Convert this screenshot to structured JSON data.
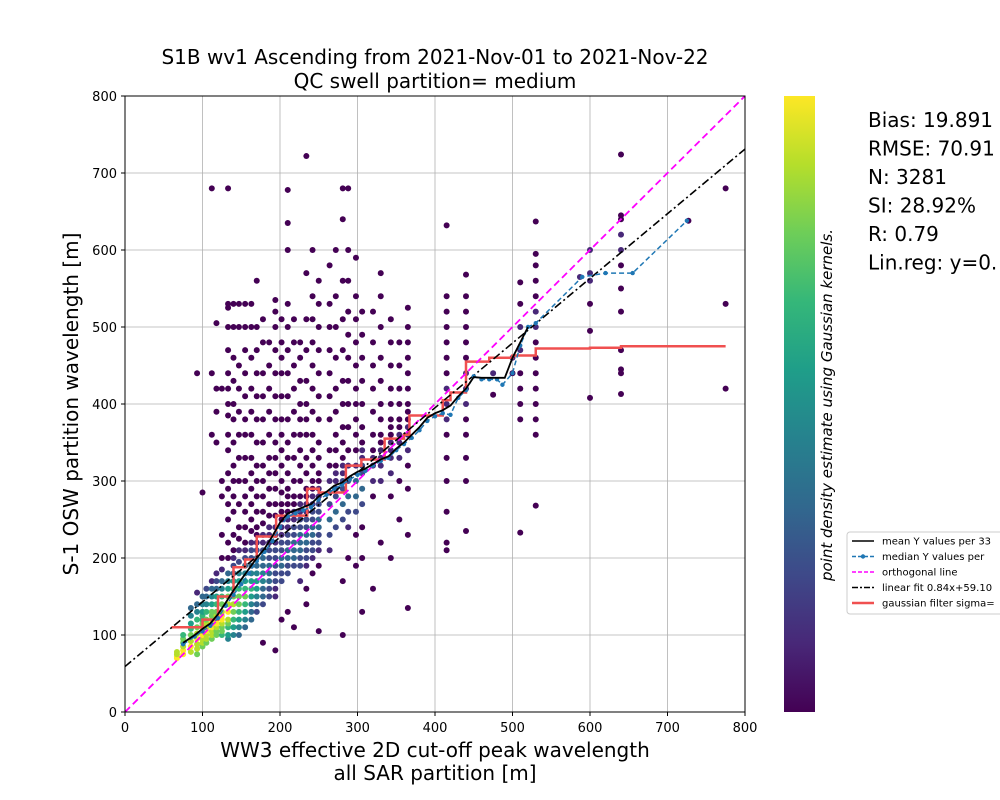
{
  "chart_data": {
    "type": "scatter",
    "title": "S1B wv1 Ascending from 2021-Nov-01 to 2021-Nov-22",
    "subtitle": "QC swell partition= medium",
    "xlabel_line1": "WW3 effective 2D cut-off peak wavelength",
    "xlabel_line2": "all SAR partition [m]",
    "ylabel": "S-1 OSW partition wavelength [m]",
    "xlim": [
      0,
      800
    ],
    "ylim": [
      0,
      800
    ],
    "xticks": [
      "0",
      "100",
      "200",
      "300",
      "400",
      "500",
      "600",
      "700",
      "800"
    ],
    "yticks": [
      "0",
      "100",
      "200",
      "300",
      "400",
      "500",
      "600",
      "700",
      "800"
    ],
    "grid": true,
    "colorbar_label": "point density estimate using Gaussian kernels.",
    "colormap": [
      "#440154",
      "#482878",
      "#3e4989",
      "#31688e",
      "#26828e",
      "#1f9e89",
      "#35b779",
      "#6ece58",
      "#b5de2b",
      "#fde725"
    ],
    "stats": [
      "Bias: 19.891",
      "RMSE: 70.91",
      "N: 3281",
      "SI: 28.92%",
      "R: 0.79",
      "Lin.reg: y=0."
    ],
    "legend": {
      "position": "right",
      "entries": [
        {
          "label": "mean Y values per 33",
          "color": "#000000",
          "style": "solid"
        },
        {
          "label": "median Y values per",
          "color": "#1f77b4",
          "style": "dashed-marker"
        },
        {
          "label": "orthogonal line",
          "color": "#ff00ff",
          "style": "dashed"
        },
        {
          "label": "linear fit 0.84x+59.10",
          "color": "#000000",
          "style": "dashdot"
        },
        {
          "label": "gaussian filter sigma=",
          "color": "#f05050",
          "style": "thick"
        }
      ]
    },
    "orthogonal_line": {
      "x": [
        0,
        800
      ],
      "y": [
        0,
        800
      ]
    },
    "linear_fit": {
      "slope": 0.84,
      "intercept": 59.1
    },
    "mean_line": {
      "x": [
        75,
        90,
        100,
        110,
        120,
        130,
        140,
        150,
        160,
        170,
        180,
        190,
        200,
        210,
        220,
        230,
        240,
        250,
        260,
        270,
        280,
        290,
        300,
        310,
        320,
        330,
        340,
        350,
        360,
        370,
        380,
        390,
        400,
        410,
        420,
        430,
        440,
        450,
        460,
        470,
        480,
        490,
        500,
        510,
        520
      ],
      "y": [
        90,
        100,
        108,
        115,
        127,
        142,
        158,
        172,
        186,
        200,
        212,
        228,
        246,
        258,
        262,
        266,
        270,
        280,
        286,
        294,
        298,
        306,
        312,
        316,
        322,
        328,
        332,
        342,
        350,
        360,
        370,
        382,
        388,
        392,
        398,
        410,
        420,
        435,
        434,
        434,
        434,
        434,
        460,
        480,
        500
      ]
    },
    "median_line": {
      "x": [
        75,
        90,
        100,
        110,
        120,
        130,
        140,
        150,
        160,
        170,
        180,
        190,
        200,
        210,
        220,
        230,
        240,
        250,
        260,
        270,
        280,
        290,
        300,
        310,
        320,
        330,
        340,
        350,
        360,
        370,
        380,
        390,
        400,
        410,
        420,
        430,
        440,
        450,
        460,
        470,
        480,
        487,
        500,
        510,
        520,
        530,
        590,
        620,
        655,
        725
      ],
      "y": [
        88,
        98,
        105,
        112,
        122,
        138,
        152,
        166,
        180,
        196,
        208,
        222,
        240,
        254,
        258,
        262,
        266,
        276,
        282,
        290,
        295,
        302,
        308,
        313,
        320,
        326,
        330,
        340,
        348,
        356,
        366,
        378,
        384,
        388,
        386,
        408,
        418,
        436,
        432,
        432,
        432,
        425,
        440,
        476,
        500,
        505,
        565,
        570,
        570,
        638
      ]
    },
    "gaussian_line": {
      "x": [
        60,
        100,
        100,
        120,
        120,
        140,
        140,
        155,
        155,
        170,
        170,
        195,
        195,
        235,
        235,
        250,
        250,
        285,
        285,
        305,
        305,
        335,
        335,
        360,
        360,
        367,
        367,
        410,
        410,
        420,
        420,
        440,
        440,
        470,
        470,
        500,
        500,
        530,
        530,
        600,
        600,
        640,
        640,
        775
      ],
      "y": [
        110,
        110,
        120,
        120,
        150,
        150,
        188,
        188,
        198,
        198,
        228,
        228,
        255,
        255,
        290,
        290,
        285,
        285,
        320,
        320,
        328,
        328,
        355,
        355,
        360,
        360,
        385,
        385,
        405,
        405,
        415,
        415,
        455,
        455,
        460,
        460,
        463,
        463,
        472,
        472,
        473,
        473,
        475,
        475
      ]
    },
    "scatter_columns": [
      {
        "x": 67,
        "y": [
          70,
          72,
          75,
          78
        ]
      },
      {
        "x": 75,
        "y": [
          75,
          80,
          85,
          90,
          95,
          100
        ]
      },
      {
        "x": 85,
        "y": [
          78,
          85,
          92,
          100,
          108,
          115,
          125,
          135
        ]
      },
      {
        "x": 93,
        "y": [
          75,
          82,
          88,
          95,
          102,
          110,
          120,
          130,
          140,
          155,
          440
        ]
      },
      {
        "x": 100,
        "y": [
          85,
          90,
          95,
          100,
          105,
          110,
          115,
          120,
          125,
          130,
          140,
          150,
          285
        ]
      },
      {
        "x": 105,
        "y": [
          90,
          95,
          100,
          105,
          110,
          115,
          120,
          130,
          140,
          150,
          160
        ]
      },
      {
        "x": 112,
        "y": [
          95,
          100,
          105,
          110,
          115,
          120,
          125,
          130,
          140,
          150,
          160,
          170,
          360,
          440,
          680
        ]
      },
      {
        "x": 118,
        "y": [
          100,
          105,
          110,
          115,
          120,
          125,
          130,
          140,
          150,
          160,
          170,
          180,
          350,
          390,
          420,
          505
        ]
      },
      {
        "x": 125,
        "y": [
          100,
          105,
          110,
          115,
          120,
          125,
          130,
          140,
          150,
          160,
          170,
          185,
          200,
          230,
          280,
          300,
          420
        ]
      },
      {
        "x": 133,
        "y": [
          95,
          100,
          110,
          115,
          120,
          130,
          140,
          150,
          160,
          170,
          180,
          200,
          220,
          250,
          270,
          290,
          310,
          340,
          360,
          385,
          400,
          420,
          440,
          470,
          500,
          525,
          530,
          680
        ]
      },
      {
        "x": 140,
        "y": [
          100,
          110,
          120,
          130,
          140,
          150,
          160,
          170,
          180,
          190,
          200,
          210,
          230,
          260,
          280,
          300,
          320,
          350,
          380,
          400,
          430,
          460,
          500,
          530
        ]
      },
      {
        "x": 147,
        "y": [
          100,
          110,
          120,
          130,
          140,
          150,
          160,
          170,
          180,
          195,
          210,
          225,
          240,
          270,
          300,
          330,
          360,
          390,
          420,
          450,
          500,
          530
        ]
      },
      {
        "x": 155,
        "y": [
          110,
          120,
          130,
          140,
          150,
          160,
          170,
          180,
          190,
          200,
          210,
          220,
          240,
          260,
          280,
          300,
          330,
          360,
          380,
          410,
          440,
          470,
          500,
          530
        ]
      },
      {
        "x": 163,
        "y": [
          120,
          130,
          140,
          150,
          160,
          170,
          180,
          190,
          200,
          210,
          220,
          235,
          250,
          270,
          290,
          310,
          330,
          360,
          390,
          420,
          460,
          500,
          530
        ]
      },
      {
        "x": 170,
        "y": [
          130,
          140,
          150,
          160,
          170,
          180,
          190,
          200,
          210,
          220,
          230,
          240,
          260,
          280,
          300,
          320,
          350,
          380,
          410,
          440,
          470,
          500,
          560
        ]
      },
      {
        "x": 178,
        "y": [
          90,
          140,
          150,
          160,
          170,
          180,
          190,
          200,
          210,
          220,
          230,
          245,
          260,
          280,
          300,
          320,
          350,
          380,
          410,
          440,
          480,
          510
        ]
      },
      {
        "x": 186,
        "y": [
          150,
          160,
          170,
          180,
          190,
          200,
          210,
          220,
          230,
          240,
          255,
          270,
          290,
          310,
          330,
          360,
          390,
          420,
          450,
          480
        ]
      },
      {
        "x": 194,
        "y": [
          80,
          150,
          160,
          170,
          180,
          190,
          200,
          210,
          220,
          230,
          240,
          255,
          270,
          290,
          310,
          330,
          350,
          380,
          410,
          440,
          470,
          500,
          520,
          535
        ]
      },
      {
        "x": 202,
        "y": [
          120,
          170,
          180,
          190,
          200,
          210,
          220,
          230,
          240,
          250,
          260,
          270,
          285,
          300,
          320,
          340,
          360,
          380,
          410,
          440,
          460,
          480,
          510
        ]
      },
      {
        "x": 210,
        "y": [
          130,
          180,
          190,
          200,
          210,
          220,
          230,
          240,
          250,
          260,
          270,
          280,
          290,
          310,
          330,
          350,
          380,
          410,
          440,
          470,
          500,
          530,
          600,
          635,
          678
        ]
      },
      {
        "x": 218,
        "y": [
          110,
          190,
          200,
          210,
          220,
          230,
          240,
          250,
          260,
          270,
          280,
          300,
          330,
          360,
          390,
          420,
          450,
          480,
          510
        ]
      },
      {
        "x": 226,
        "y": [
          170,
          190,
          200,
          210,
          220,
          230,
          240,
          250,
          260,
          270,
          280,
          300,
          320,
          340,
          360,
          380,
          400,
          430,
          460,
          480
        ]
      },
      {
        "x": 234,
        "y": [
          140,
          160,
          190,
          200,
          210,
          220,
          230,
          240,
          250,
          260,
          270,
          280,
          290,
          310,
          330,
          360,
          380,
          400,
          430,
          470,
          510,
          570,
          722
        ]
      },
      {
        "x": 242,
        "y": [
          180,
          200,
          210,
          220,
          230,
          240,
          250,
          260,
          270,
          280,
          290,
          300,
          320,
          340,
          360,
          390,
          420,
          450,
          480,
          510,
          540,
          600
        ]
      },
      {
        "x": 250,
        "y": [
          105,
          190,
          210,
          220,
          230,
          240,
          250,
          260,
          270,
          280,
          290,
          300,
          310,
          330,
          350,
          380,
          410,
          440,
          470,
          500,
          530,
          560
        ]
      },
      {
        "x": 264,
        "y": [
          210,
          230,
          250,
          270,
          285,
          300,
          320,
          340,
          380,
          410,
          440,
          470,
          500,
          530,
          580
        ]
      },
      {
        "x": 272,
        "y": [
          240,
          260,
          280,
          290,
          300,
          310,
          320,
          340,
          360,
          390,
          420,
          460,
          500,
          540,
          600
        ]
      },
      {
        "x": 281,
        "y": [
          100,
          170,
          250,
          270,
          290,
          300,
          310,
          320,
          330,
          350,
          370,
          400,
          430,
          470,
          510,
          560,
          640,
          680
        ]
      },
      {
        "x": 288,
        "y": [
          200,
          240,
          260,
          280,
          300,
          320,
          340,
          370,
          400,
          430,
          460,
          490,
          520,
          560,
          600,
          680
        ]
      },
      {
        "x": 298,
        "y": [
          190,
          230,
          260,
          280,
          300,
          320,
          340,
          360,
          380,
          400,
          420,
          450,
          480,
          510,
          540,
          590
        ]
      },
      {
        "x": 306,
        "y": [
          130,
          200,
          240,
          270,
          290,
          310,
          320,
          330,
          340,
          350,
          370,
          400,
          430,
          460,
          490,
          520
        ]
      },
      {
        "x": 320,
        "y": [
          160,
          280,
          300,
          320,
          330,
          340,
          360,
          390,
          420,
          450,
          480,
          520
        ]
      },
      {
        "x": 330,
        "y": [
          220,
          300,
          320,
          330,
          340,
          350,
          360,
          380,
          400,
          430,
          460,
          500,
          540,
          570
        ]
      },
      {
        "x": 343,
        "y": [
          200,
          280,
          310,
          330,
          340,
          350,
          360,
          370,
          380,
          400,
          420,
          450,
          480,
          510
        ]
      },
      {
        "x": 354,
        "y": [
          250,
          300,
          330,
          350,
          360,
          370,
          380,
          400,
          420,
          450,
          480
        ]
      },
      {
        "x": 365,
        "y": [
          135,
          230,
          290,
          320,
          340,
          360,
          370,
          380,
          390,
          400,
          420,
          440,
          460,
          480,
          500,
          525
        ]
      },
      {
        "x": 415,
        "y": [
          210,
          220,
          260,
          300,
          330,
          360,
          380,
          400,
          420,
          440,
          460,
          480,
          500,
          520,
          540,
          632
        ]
      },
      {
        "x": 440,
        "y": [
          235,
          300,
          330,
          360,
          380,
          400,
          420,
          440,
          460,
          480,
          500,
          520,
          540,
          568
        ]
      },
      {
        "x": 475,
        "y": [
          412,
          440
        ]
      },
      {
        "x": 500,
        "y": [
          440,
          460
        ]
      },
      {
        "x": 510,
        "y": [
          233,
          380,
          400,
          420,
          440,
          470,
          500,
          530,
          558
        ]
      },
      {
        "x": 530,
        "y": [
          268,
          360,
          380,
          400,
          420,
          440,
          460,
          480,
          500,
          520,
          540,
          560,
          580,
          595,
          637
        ]
      },
      {
        "x": 587,
        "y": [
          565
        ]
      },
      {
        "x": 600,
        "y": [
          408,
          495,
          530,
          560,
          570,
          600
        ]
      },
      {
        "x": 640,
        "y": [
          413,
          440,
          445,
          470,
          520,
          550,
          580,
          600,
          620,
          640,
          645,
          724
        ]
      },
      {
        "x": 727,
        "y": [
          638
        ]
      },
      {
        "x": 775,
        "y": [
          420,
          530,
          680
        ]
      }
    ]
  }
}
